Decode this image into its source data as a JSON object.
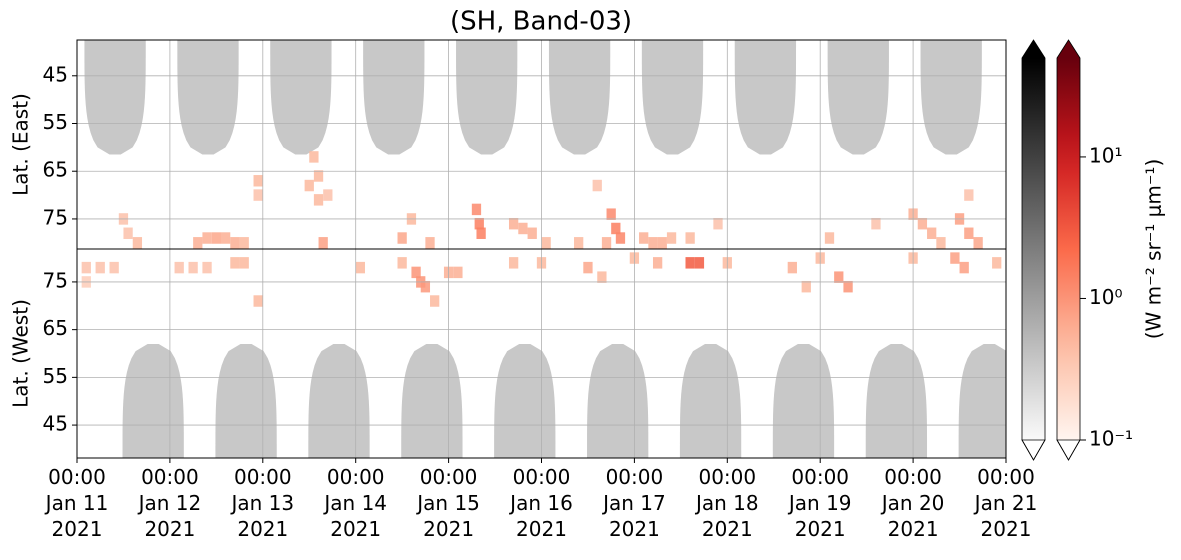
{
  "chart_data": [
    {
      "type": "heatmap",
      "title": "(SH, Band-03)",
      "ylabel": "Lat. (East)",
      "xlim": [
        0,
        10
      ],
      "ylim": [
        37.5,
        81.3
      ],
      "yticks": [
        45,
        55,
        65,
        75
      ],
      "xticks": [
        0,
        1,
        2,
        3,
        4,
        5,
        6,
        7,
        8,
        9,
        10
      ],
      "grid": true,
      "night": {
        "x": [
          0.41,
          1.41,
          2.41,
          3.41,
          4.41,
          5.41,
          6.41,
          7.41,
          8.41,
          9.41
        ],
        "edge": 61.5,
        "values": [
          0.35,
          0.35,
          0.35,
          0.35,
          0.35,
          0.35,
          0.35,
          0.35,
          0.35,
          0.35
        ]
      },
      "cells": {
        "x": [
          0.5,
          0.55,
          0.65,
          1.3,
          1.4,
          1.5,
          1.6,
          1.7,
          1.8,
          1.95,
          1.95,
          2.5,
          2.6,
          2.65,
          2.55,
          2.6,
          2.7,
          3.5,
          3.6,
          3.8,
          4.3,
          4.33,
          4.35,
          4.7,
          4.8,
          4.9,
          5.05,
          5.4,
          5.6,
          5.7,
          5.75,
          5.8,
          5.85,
          6.1,
          6.2,
          6.3,
          6.4,
          6.6,
          6.9,
          8.1,
          8.6,
          9.0,
          9.1,
          9.2,
          9.3,
          9.5,
          9.6,
          9.7,
          9.6
        ],
        "y": [
          75,
          78,
          80,
          80,
          79,
          79,
          79,
          80,
          80,
          67,
          70,
          68,
          71,
          80,
          62,
          66,
          70,
          79,
          75,
          80,
          73,
          76,
          78,
          76,
          77,
          78,
          80,
          80,
          68,
          80,
          74,
          77,
          79,
          79,
          80,
          80,
          79,
          79,
          76,
          79,
          76,
          74,
          76,
          78,
          80,
          75,
          78,
          80,
          70
        ],
        "values": [
          0.4,
          0.4,
          0.5,
          0.6,
          0.6,
          0.7,
          0.6,
          0.6,
          0.5,
          0.5,
          0.4,
          0.5,
          0.5,
          0.8,
          0.5,
          0.5,
          0.4,
          0.7,
          0.5,
          0.6,
          1.2,
          1.5,
          1.5,
          0.6,
          0.6,
          0.6,
          0.5,
          0.5,
          0.4,
          0.6,
          1.2,
          1.5,
          1.3,
          0.6,
          0.6,
          0.6,
          0.5,
          0.5,
          0.4,
          0.5,
          0.4,
          0.6,
          0.6,
          0.6,
          0.5,
          0.8,
          0.8,
          0.7,
          0.4
        ]
      }
    },
    {
      "type": "heatmap",
      "ylabel": "Lat. (West)",
      "xlim": [
        0,
        10
      ],
      "ylim": [
        81.9,
        38.1
      ],
      "yticks": [
        75,
        65,
        55,
        45
      ],
      "grid": true,
      "xticks": [
        {
          "value": 0,
          "label": "00:00\nJan 11\n2021"
        },
        {
          "value": 1,
          "label": "00:00\nJan 12\n2021"
        },
        {
          "value": 2,
          "label": "00:00\nJan 13\n2021"
        },
        {
          "value": 3,
          "label": "00:00\nJan 14\n2021"
        },
        {
          "value": 4,
          "label": "00:00\nJan 15\n2021"
        },
        {
          "value": 5,
          "label": "00:00\nJan 16\n2021"
        },
        {
          "value": 6,
          "label": "00:00\nJan 17\n2021"
        },
        {
          "value": 7,
          "label": "00:00\nJan 18\n2021"
        },
        {
          "value": 8,
          "label": "00:00\nJan 19\n2021"
        },
        {
          "value": 9,
          "label": "00:00\nJan 20\n2021"
        },
        {
          "value": 10,
          "label": "00:00\nJan 21\n2021"
        }
      ],
      "night": {
        "x": [
          0.82,
          1.82,
          2.82,
          3.82,
          4.82,
          5.82,
          6.82,
          7.82,
          8.82,
          9.82
        ],
        "edge": 62,
        "values": [
          0.35,
          0.35,
          0.35,
          0.35,
          0.35,
          0.35,
          0.35,
          0.35,
          0.35,
          0.35
        ]
      },
      "cells": {
        "x": [
          0.1,
          0.25,
          0.4,
          0.1,
          1.1,
          1.25,
          1.4,
          1.7,
          1.8,
          1.95,
          3.05,
          3.5,
          3.65,
          3.7,
          3.75,
          3.85,
          4.0,
          4.1,
          4.7,
          5.0,
          5.5,
          5.65,
          6.0,
          6.25,
          6.6,
          6.7,
          7.0,
          7.7,
          7.85,
          8.2,
          8.3,
          8.0,
          9.0,
          9.45,
          9.55,
          9.9
        ],
        "y": [
          78,
          78,
          78,
          75,
          78,
          78,
          78,
          79,
          79,
          71,
          78,
          79,
          77,
          75,
          74,
          71,
          77,
          77,
          79,
          79,
          78,
          76,
          80,
          79,
          79,
          79,
          79,
          78,
          74,
          76,
          74,
          80,
          80,
          80,
          78,
          79
        ],
        "values": [
          0.4,
          0.4,
          0.4,
          0.3,
          0.4,
          0.4,
          0.4,
          0.5,
          0.5,
          0.5,
          0.5,
          0.5,
          1.0,
          1.0,
          0.9,
          0.5,
          0.6,
          0.6,
          0.5,
          0.5,
          0.7,
          0.5,
          0.5,
          0.6,
          3,
          3,
          0.5,
          0.6,
          0.5,
          1.0,
          1.0,
          0.5,
          0.5,
          0.8,
          0.8,
          0.5
        ]
      }
    },
    {
      "type": "colorbar",
      "ylabel": "(W m⁻² sr⁻¹ μm⁻¹)",
      "log_scale": true,
      "ylim": [
        0.1,
        50
      ],
      "yticks": [
        {
          "value": 0.1,
          "label": "10⁻¹"
        },
        {
          "value": 1,
          "label": "10⁰"
        },
        {
          "value": 10,
          "label": "10¹"
        }
      ],
      "colormaps": [
        "gray",
        "red"
      ]
    }
  ]
}
